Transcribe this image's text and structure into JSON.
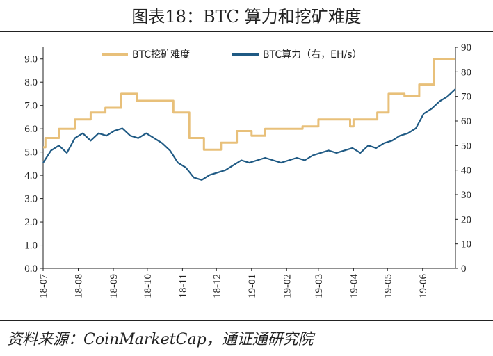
{
  "title": "图表18：BTC 算力和挖矿难度",
  "source": "资料来源：CoinMarketCap，通证通研究院",
  "chart_data": {
    "type": "line",
    "grid": false,
    "legend_position": "top",
    "x_ticks": [
      "18-07",
      "18-08",
      "18-09",
      "18-10",
      "18-11",
      "18-12",
      "19-01",
      "19-02",
      "19-03",
      "19-04",
      "19-05",
      "19-06"
    ],
    "x_range": [
      "2018-07-01",
      "2019-06-30"
    ],
    "y_left": {
      "ticks": [
        "0.0",
        "1.0",
        "2.0",
        "3.0",
        "4.0",
        "5.0",
        "6.0",
        "7.0",
        "8.0",
        "9.0"
      ],
      "range": [
        0,
        9.5
      ]
    },
    "y_right": {
      "ticks": [
        "0",
        "10",
        "20",
        "30",
        "40",
        "50",
        "60",
        "70",
        "80",
        "90"
      ],
      "range": [
        0,
        90
      ]
    },
    "series": [
      {
        "name": "BTC挖矿难度",
        "axis": "left",
        "color": "#e8c07a",
        "step": true,
        "points": [
          [
            "2018-07-01",
            5.2
          ],
          [
            "2018-07-03",
            5.6
          ],
          [
            "2018-07-15",
            6.0
          ],
          [
            "2018-07-29",
            6.4
          ],
          [
            "2018-08-12",
            6.7
          ],
          [
            "2018-08-25",
            6.9
          ],
          [
            "2018-09-08",
            7.5
          ],
          [
            "2018-09-22",
            7.2
          ],
          [
            "2018-10-13",
            7.2
          ],
          [
            "2018-10-24",
            6.7
          ],
          [
            "2018-11-07",
            5.6
          ],
          [
            "2018-11-20",
            5.1
          ],
          [
            "2018-12-05",
            5.4
          ],
          [
            "2018-12-19",
            5.9
          ],
          [
            "2019-01-01",
            5.7
          ],
          [
            "2019-01-13",
            6.0
          ],
          [
            "2019-02-01",
            6.0
          ],
          [
            "2019-02-15",
            6.1
          ],
          [
            "2019-03-01",
            6.4
          ],
          [
            "2019-03-15",
            6.4
          ],
          [
            "2019-03-29",
            6.1
          ],
          [
            "2019-04-01",
            6.4
          ],
          [
            "2019-04-22",
            6.7
          ],
          [
            "2019-05-02",
            7.5
          ],
          [
            "2019-05-16",
            7.4
          ],
          [
            "2019-05-29",
            7.9
          ],
          [
            "2019-06-11",
            9.0
          ],
          [
            "2019-06-25",
            9.0
          ],
          [
            "2019-06-30",
            9.0
          ]
        ]
      },
      {
        "name": "BTC算力（右，EH/s）",
        "axis": "right",
        "color": "#1f5a84",
        "step": false,
        "points": [
          [
            "2018-07-01",
            43
          ],
          [
            "2018-07-08",
            48
          ],
          [
            "2018-07-15",
            50
          ],
          [
            "2018-07-22",
            47
          ],
          [
            "2018-07-29",
            53
          ],
          [
            "2018-08-05",
            55
          ],
          [
            "2018-08-12",
            52
          ],
          [
            "2018-08-19",
            55
          ],
          [
            "2018-08-26",
            54
          ],
          [
            "2018-09-02",
            56
          ],
          [
            "2018-09-09",
            57
          ],
          [
            "2018-09-16",
            54
          ],
          [
            "2018-09-23",
            53
          ],
          [
            "2018-09-30",
            55
          ],
          [
            "2018-10-07",
            53
          ],
          [
            "2018-10-14",
            51
          ],
          [
            "2018-10-21",
            48
          ],
          [
            "2018-10-28",
            43
          ],
          [
            "2018-11-04",
            41
          ],
          [
            "2018-11-11",
            37
          ],
          [
            "2018-11-18",
            36
          ],
          [
            "2018-11-25",
            38
          ],
          [
            "2018-12-02",
            39
          ],
          [
            "2018-12-09",
            40
          ],
          [
            "2018-12-16",
            42
          ],
          [
            "2018-12-23",
            44
          ],
          [
            "2018-12-30",
            43
          ],
          [
            "2019-01-06",
            44
          ],
          [
            "2019-01-13",
            45
          ],
          [
            "2019-01-20",
            44
          ],
          [
            "2019-01-27",
            43
          ],
          [
            "2019-02-03",
            44
          ],
          [
            "2019-02-10",
            45
          ],
          [
            "2019-02-17",
            44
          ],
          [
            "2019-02-24",
            46
          ],
          [
            "2019-03-03",
            47
          ],
          [
            "2019-03-10",
            48
          ],
          [
            "2019-03-17",
            47
          ],
          [
            "2019-03-24",
            48
          ],
          [
            "2019-03-31",
            49
          ],
          [
            "2019-04-07",
            47
          ],
          [
            "2019-04-14",
            50
          ],
          [
            "2019-04-21",
            49
          ],
          [
            "2019-04-28",
            51
          ],
          [
            "2019-05-05",
            52
          ],
          [
            "2019-05-12",
            54
          ],
          [
            "2019-05-19",
            55
          ],
          [
            "2019-05-26",
            57
          ],
          [
            "2019-06-02",
            63
          ],
          [
            "2019-06-09",
            65
          ],
          [
            "2019-06-16",
            68
          ],
          [
            "2019-06-23",
            70
          ],
          [
            "2019-06-30",
            73
          ]
        ]
      }
    ]
  }
}
